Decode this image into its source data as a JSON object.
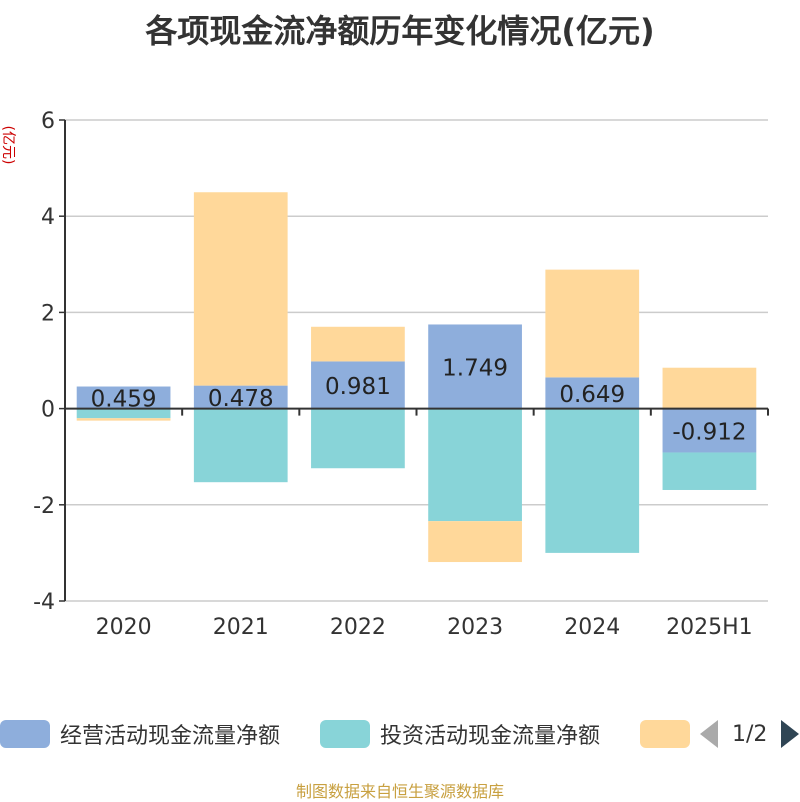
{
  "title": "各项现金流净额历年变化情况(亿元)",
  "y_unit": "(亿元)",
  "legend": {
    "items": [
      {
        "label": "经营活动现金流量净额",
        "color": "#8eaedc"
      },
      {
        "label": "投资活动现金流量净额",
        "color": "#88d4d8"
      },
      {
        "label": "",
        "color": "#ffd89a"
      }
    ],
    "page_indicator": "1/2"
  },
  "source_note": "制图数据来自恒生聚源数据库",
  "chart_data": {
    "type": "bar",
    "stacked": true,
    "categories": [
      "2020",
      "2021",
      "2022",
      "2023",
      "2024",
      "2025H1"
    ],
    "series": [
      {
        "name": "经营活动现金流量净额",
        "color": "#8eaedc",
        "values": [
          0.459,
          0.478,
          0.981,
          1.749,
          0.649,
          -0.912
        ],
        "labels": [
          "0.459",
          "0.478",
          "0.981",
          "1.749",
          "0.649",
          "-0.912"
        ]
      },
      {
        "name": "投资活动现金流量净额",
        "color": "#88d4d8",
        "values": [
          -0.2,
          -1.53,
          -1.24,
          -2.34,
          -3.0,
          -0.78
        ]
      },
      {
        "name": "",
        "color": "#ffd89a",
        "values": [
          -0.05,
          4.02,
          0.72,
          -0.85,
          2.24,
          0.85
        ]
      }
    ],
    "ylim": [
      -4,
      6
    ],
    "yticks": [
      -4,
      -2,
      0,
      2,
      4,
      6
    ],
    "grid": true,
    "legend_position": "bottom"
  }
}
